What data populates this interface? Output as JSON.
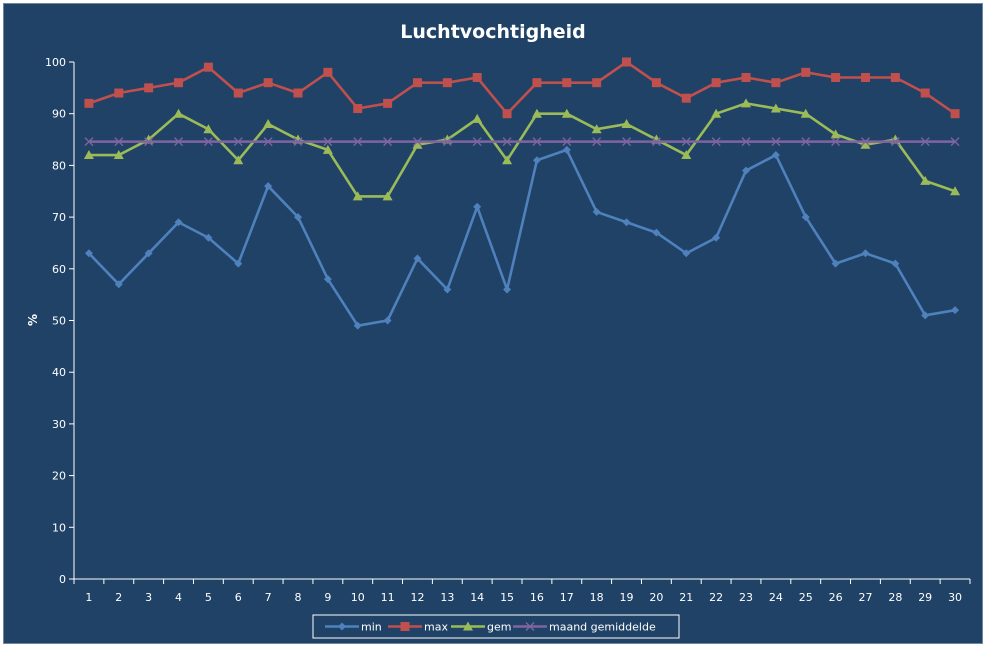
{
  "chart_data": {
    "type": "line",
    "title": "Luchtvochtigheid",
    "xlabel": "",
    "ylabel": "%",
    "ylim": [
      0,
      100
    ],
    "yticks": [
      0,
      10,
      20,
      30,
      40,
      50,
      60,
      70,
      80,
      90,
      100
    ],
    "grid": false,
    "legend_position": "bottom",
    "categories": [
      "1",
      "2",
      "3",
      "4",
      "5",
      "6",
      "7",
      "8",
      "9",
      "10",
      "11",
      "12",
      "13",
      "14",
      "15",
      "16",
      "17",
      "18",
      "19",
      "20",
      "21",
      "22",
      "23",
      "24",
      "25",
      "26",
      "27",
      "28",
      "29",
      "30"
    ],
    "series": [
      {
        "name": "min",
        "color": "#4f81bd",
        "marker": "diamond",
        "values": [
          63,
          57,
          63,
          69,
          66,
          61,
          76,
          70,
          58,
          49,
          50,
          62,
          56,
          72,
          56,
          81,
          83,
          71,
          69,
          67,
          63,
          66,
          79,
          82,
          70,
          61,
          63,
          61,
          51,
          52
        ]
      },
      {
        "name": "max",
        "color": "#c0504d",
        "marker": "square",
        "values": [
          92,
          94,
          95,
          96,
          99,
          94,
          96,
          94,
          98,
          91,
          92,
          96,
          96,
          97,
          90,
          96,
          96,
          96,
          100,
          96,
          93,
          96,
          97,
          96,
          98,
          97,
          97,
          97,
          94,
          90
        ]
      },
      {
        "name": "gem",
        "color": "#9bbb59",
        "marker": "triangle",
        "values": [
          82,
          82,
          85,
          90,
          87,
          81,
          88,
          85,
          83,
          74,
          74,
          84,
          85,
          89,
          81,
          90,
          90,
          87,
          88,
          85,
          82,
          90,
          92,
          91,
          90,
          86,
          84,
          85,
          77,
          75
        ]
      },
      {
        "name": "maand gemiddelde",
        "color": "#8064a2",
        "marker": "x",
        "values": [
          84.6,
          84.6,
          84.6,
          84.6,
          84.6,
          84.6,
          84.6,
          84.6,
          84.6,
          84.6,
          84.6,
          84.6,
          84.6,
          84.6,
          84.6,
          84.6,
          84.6,
          84.6,
          84.6,
          84.6,
          84.6,
          84.6,
          84.6,
          84.6,
          84.6,
          84.6,
          84.6,
          84.6,
          84.6,
          84.6
        ]
      }
    ]
  },
  "colors": {
    "background": "#1f4266",
    "axis": "#ffffff",
    "text": "#ffffff",
    "legend_background": "#ffffff"
  }
}
